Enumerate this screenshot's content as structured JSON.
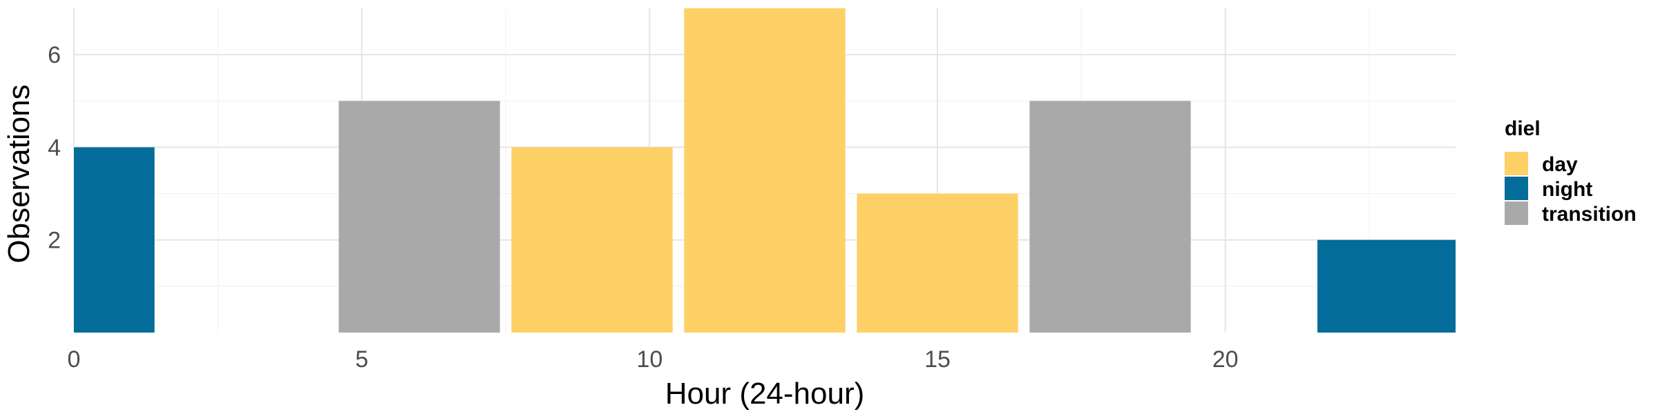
{
  "chart_data": {
    "type": "bar",
    "xlabel": "Hour (24-hour)",
    "ylabel": "Observations",
    "xlim": [
      0,
      24
    ],
    "ylim": [
      0,
      7
    ],
    "x_ticks": [
      0,
      5,
      10,
      15,
      20
    ],
    "y_ticks": [
      2,
      4,
      6
    ],
    "grid": true,
    "legend": {
      "title": "diel",
      "position": "right",
      "entries": [
        {
          "label": "day",
          "color": "#FDD166"
        },
        {
          "label": "night",
          "color": "#046C9A"
        },
        {
          "label": "transition",
          "color": "#A9A9A9"
        }
      ]
    },
    "bars": [
      {
        "x_start": 0,
        "x_end": 1.4,
        "value": 4,
        "group": "night"
      },
      {
        "x_start": 4.6,
        "x_end": 7.4,
        "value": 5,
        "group": "transition"
      },
      {
        "x_start": 7.6,
        "x_end": 10.4,
        "value": 4,
        "group": "day"
      },
      {
        "x_start": 10.6,
        "x_end": 13.4,
        "value": 7,
        "group": "day"
      },
      {
        "x_start": 13.6,
        "x_end": 16.4,
        "value": 3,
        "group": "day"
      },
      {
        "x_start": 16.6,
        "x_end": 19.4,
        "value": 5,
        "group": "transition"
      },
      {
        "x_start": 21.6,
        "x_end": 24,
        "value": 2,
        "group": "night"
      }
    ]
  }
}
